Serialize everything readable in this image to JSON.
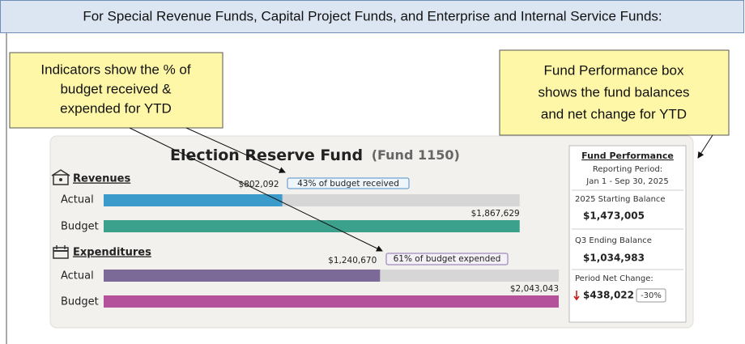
{
  "header": {
    "title": "For Special Revenue Funds, Capital Project Funds, and Enterprise and Internal Service Funds:"
  },
  "callouts": [
    {
      "lines": [
        "Indicators show the % of",
        "budget received &",
        "expended for YTD"
      ]
    },
    {
      "lines": [
        "Fund Performance box",
        "shows the fund balances",
        "and net change for YTD"
      ]
    }
  ],
  "dashboard": {
    "title": "Election Reserve Fund",
    "fund_number": "(Fund 1150)",
    "revenues": {
      "heading": "Revenues",
      "actual_label": "Actual",
      "budget_label": "Budget",
      "actual": {
        "value": 802092,
        "label": "$802,092"
      },
      "budget": {
        "value": 1867629,
        "label": "$1,867,629"
      },
      "indicator": "43% of budget received"
    },
    "expenditures": {
      "heading": "Expenditures",
      "actual_label": "Actual",
      "budget_label": "Budget",
      "actual": {
        "value": 1240670,
        "label": "$1,240,670"
      },
      "budget": {
        "value": 2043043,
        "label": "$2,043,043"
      },
      "indicator": "61% of budget expended"
    },
    "fund_performance": {
      "title": "Fund Performance",
      "period_label": "Reporting Period:",
      "period": "Jan 1 - Sep 30, 2025",
      "starting_label": "2025 Starting Balance",
      "starting_value": "$1,473,005",
      "ending_label": "Q3 Ending Balance",
      "ending_value": "$1,034,983",
      "net_label": "Period Net Change:",
      "net_value": "$438,022",
      "net_pct": "-30%"
    }
  }
}
